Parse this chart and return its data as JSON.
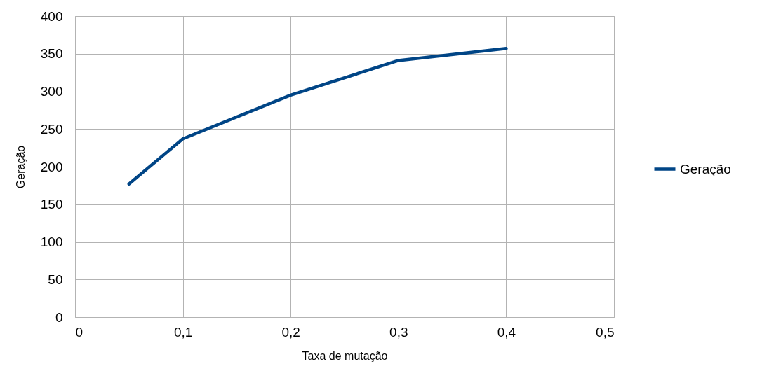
{
  "chart_data": {
    "type": "line",
    "xlabel": "Taxa de mutação",
    "ylabel": "Geração",
    "x": [
      0.05,
      0.1,
      0.2,
      0.3,
      0.4
    ],
    "series": [
      {
        "name": "Geração",
        "color": "#004586",
        "values": [
          177,
          237,
          295,
          341,
          357
        ]
      }
    ],
    "xlim": [
      0,
      0.5
    ],
    "xticks": [
      0,
      {
        "value": 0.1,
        "label": "0,1"
      },
      {
        "value": 0.2,
        "label": "0,2"
      },
      {
        "value": 0.3,
        "label": "0,3"
      },
      {
        "value": 0.4,
        "label": "0,4"
      },
      {
        "value": 0.5,
        "label": "0,5"
      }
    ],
    "ylim": [
      0,
      400
    ],
    "yticks": [
      0,
      50,
      100,
      150,
      200,
      250,
      300,
      350,
      400
    ],
    "grid": true,
    "legend": "right",
    "marker": "none",
    "line_style": "solid"
  }
}
